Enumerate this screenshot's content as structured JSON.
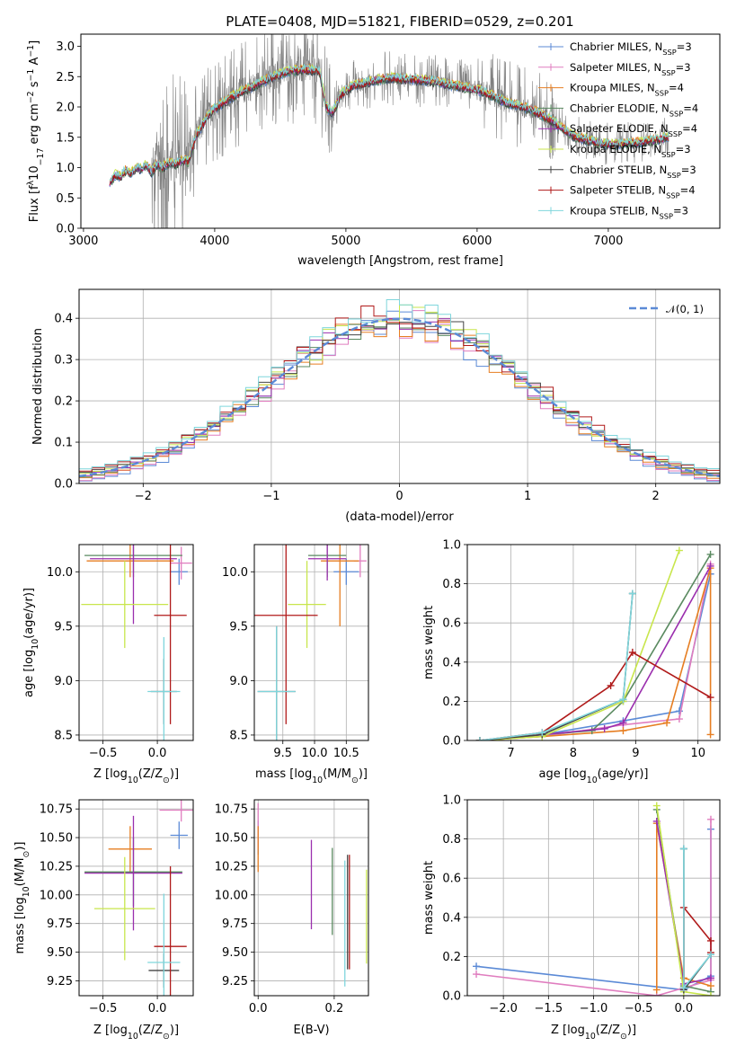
{
  "figure": {
    "title": "PLATE=0408, MJD=51821, FIBERID=0529, z=0.201"
  },
  "colors": {
    "Chabrier MILES": "#5b8ad6",
    "Salpeter MILES": "#e07dbf",
    "Kroupa MILES": "#e67e22",
    "Chabrier ELODIE": "#5a8a60",
    "Salpeter ELODIE": "#9b2fae",
    "Kroupa ELODIE": "#c8e64c",
    "Chabrier STELIB": "#444444",
    "Salpeter STELIB": "#b01a1a",
    "Kroupa STELIB": "#7fd6dc",
    "data": "#808080",
    "gaussian": "#5b8ad6"
  },
  "chart_data": [
    {
      "id": "spectrum",
      "type": "line",
      "title": "PLATE=0408, MJD=51821, FIBERID=0529, z=0.201",
      "xlabel": "wavelength [Angstrom, rest frame]",
      "ylabel_parts": [
        "Flux [",
        "f",
        "λ",
        "10",
        "−17",
        " erg cm",
        "−2",
        " s",
        "−1",
        " A",
        "−1",
        "]"
      ],
      "xlim": [
        2980,
        7850
      ],
      "ylim": [
        0,
        3.2
      ],
      "xticks": [
        3000,
        4000,
        5000,
        6000,
        7000
      ],
      "yticks": [
        0.0,
        0.5,
        1.0,
        1.5,
        2.0,
        2.5,
        3.0
      ],
      "ytick_labels": [
        "0.0",
        "0.5",
        "1.0",
        "1.5",
        "2.0",
        "2.5",
        "3.0"
      ],
      "grid": false,
      "legend_position": "top-right",
      "legend": [
        {
          "name": "Chabrier MILES",
          "nssp": "3"
        },
        {
          "name": "Salpeter MILES",
          "nssp": "3"
        },
        {
          "name": "Kroupa MILES",
          "nssp": "4"
        },
        {
          "name": "Chabrier ELODIE",
          "nssp": "4"
        },
        {
          "name": "Salpeter ELODIE",
          "nssp": "4"
        },
        {
          "name": "Kroupa ELODIE",
          "nssp": "3"
        },
        {
          "name": "Chabrier STELIB",
          "nssp": "3"
        },
        {
          "name": "Salpeter STELIB",
          "nssp": "4"
        },
        {
          "name": "Kroupa STELIB",
          "nssp": "3"
        }
      ],
      "legend_suffix": ", N",
      "legend_sub": "SSP",
      "model_continuum": {
        "x": [
          3200,
          3240,
          3280,
          3320,
          3360,
          3400,
          3440,
          3480,
          3520,
          3560,
          3600,
          3650,
          3700,
          3750,
          3800,
          3860,
          3920,
          3980,
          4050,
          4120,
          4200,
          4300,
          4400,
          4500,
          4600,
          4700,
          4800,
          4850,
          4900,
          4960,
          5050,
          5150,
          5250,
          5350,
          5450,
          5550,
          5650,
          5750,
          5850,
          5950,
          6050,
          6150,
          6250,
          6350,
          6450,
          6550,
          6650,
          6750,
          6850,
          6950,
          7050,
          7150,
          7250,
          7350,
          7450
        ],
        "y": [
          0.75,
          0.88,
          0.85,
          0.95,
          0.9,
          1.0,
          0.98,
          1.05,
          0.92,
          1.05,
          1.0,
          1.08,
          1.05,
          1.12,
          1.1,
          1.55,
          1.75,
          1.95,
          2.05,
          2.15,
          2.25,
          2.35,
          2.45,
          2.55,
          2.6,
          2.62,
          2.58,
          2.0,
          1.9,
          2.2,
          2.35,
          2.4,
          2.45,
          2.48,
          2.46,
          2.45,
          2.43,
          2.38,
          2.35,
          2.3,
          2.25,
          2.15,
          2.05,
          2.0,
          1.92,
          1.8,
          1.65,
          1.5,
          1.45,
          1.4,
          1.38,
          1.4,
          1.42,
          1.45,
          1.5
        ]
      }
    },
    {
      "id": "residuals",
      "type": "histogram",
      "xlabel": "(data-model)/error",
      "ylabel": "Normed distribution",
      "xlim": [
        -2.5,
        2.5
      ],
      "ylim": [
        0,
        0.47
      ],
      "xticks": [
        -2,
        -1,
        0,
        1,
        2
      ],
      "xtick_labels": [
        "−2",
        "−1",
        "0",
        "1",
        "2"
      ],
      "yticks": [
        0.0,
        0.1,
        0.2,
        0.3,
        0.4
      ],
      "ytick_labels": [
        "0.0",
        "0.1",
        "0.2",
        "0.3",
        "0.4"
      ],
      "grid": true,
      "legend_position": "top-right",
      "gaussian_label": "𝒩(0, 1)",
      "bin_width": 0.1
    },
    {
      "id": "age_vs_Z",
      "type": "scatter",
      "xlabel_parts": [
        "Z [log",
        "10",
        "(Z/Z",
        "⊙",
        ")]"
      ],
      "ylabel_parts": [
        "age  [log",
        "10",
        "(age/yr)]"
      ],
      "xlim": [
        -0.72,
        0.33
      ],
      "ylim": [
        8.45,
        10.25
      ],
      "xticks": [
        -0.5,
        0.0
      ],
      "xtick_labels": [
        "−0.5",
        "0.0"
      ],
      "yticks": [
        8.5,
        9.0,
        9.5,
        10.0
      ],
      "ytick_labels": [
        "8.5",
        "9.0",
        "9.5",
        "10.0"
      ],
      "grid": true,
      "points": [
        {
          "series": "Chabrier MILES",
          "x": 0.2,
          "y": 10.0,
          "xerr": 0.08,
          "yerr": 0.12
        },
        {
          "series": "Salpeter MILES",
          "x": 0.22,
          "y": 10.08,
          "xerr": 0.1,
          "yerr": 0.15
        },
        {
          "series": "Kroupa MILES",
          "x": -0.25,
          "y": 10.1,
          "xerr": 0.4,
          "yerr": 0.15
        },
        {
          "series": "Chabrier ELODIE",
          "x": -0.22,
          "y": 10.15,
          "xerr": 0.45,
          "yerr": 0.2
        },
        {
          "series": "Salpeter ELODIE",
          "x": -0.22,
          "y": 10.12,
          "xerr": 0.4,
          "yerr": 0.6
        },
        {
          "series": "Kroupa ELODIE",
          "x": -0.3,
          "y": 9.7,
          "xerr": 0.4,
          "yerr": 0.4
        },
        {
          "series": "Chabrier STELIB",
          "x": 0.06,
          "y": 8.9,
          "xerr": 0.12,
          "yerr": 0.3
        },
        {
          "series": "Salpeter STELIB",
          "x": 0.12,
          "y": 9.6,
          "xerr": 0.15,
          "yerr": 1.0
        },
        {
          "series": "Kroupa STELIB",
          "x": 0.06,
          "y": 8.9,
          "xerr": 0.15,
          "yerr": 0.5
        }
      ]
    },
    {
      "id": "age_vs_mass",
      "type": "scatter",
      "xlabel_parts": [
        "mass [log",
        "10",
        "(M/M",
        "⊙",
        ")]"
      ],
      "ylabel": "",
      "xlim": [
        9.05,
        10.85
      ],
      "ylim": [
        8.45,
        10.25
      ],
      "xticks": [
        9.5,
        10.0,
        10.5
      ],
      "xtick_labels": [
        "9.5",
        "10.0",
        "10.5"
      ],
      "yticks": [
        8.5,
        9.0,
        9.5,
        10.0
      ],
      "ytick_labels": [
        "8.5",
        "9.0",
        "9.5",
        "10.0"
      ],
      "grid": true,
      "points": [
        {
          "series": "Chabrier MILES",
          "x": 10.5,
          "y": 10.0,
          "xerr": 0.2,
          "yerr": 0.12
        },
        {
          "series": "Salpeter MILES",
          "x": 10.72,
          "y": 10.1,
          "xerr": 0.1,
          "yerr": 0.15
        },
        {
          "series": "Kroupa MILES",
          "x": 10.4,
          "y": 10.1,
          "xerr": 0.3,
          "yerr": 0.6
        },
        {
          "series": "Chabrier ELODIE",
          "x": 10.2,
          "y": 10.15,
          "xerr": 0.3,
          "yerr": 0.2
        },
        {
          "series": "Salpeter ELODIE",
          "x": 10.2,
          "y": 10.12,
          "xerr": 0.3,
          "yerr": 0.2
        },
        {
          "series": "Kroupa ELODIE",
          "x": 9.88,
          "y": 9.7,
          "xerr": 0.3,
          "yerr": 0.4
        },
        {
          "series": "Chabrier STELIB",
          "x": 9.4,
          "y": 8.9,
          "xerr": 0.3,
          "yerr": 0.6
        },
        {
          "series": "Salpeter STELIB",
          "x": 9.55,
          "y": 9.6,
          "xerr": 0.5,
          "yerr": 1.0
        },
        {
          "series": "Kroupa STELIB",
          "x": 9.4,
          "y": 8.9,
          "xerr": 0.3,
          "yerr": 0.6
        }
      ]
    },
    {
      "id": "cum_weight_vs_age",
      "type": "line",
      "xlabel_parts": [
        "age  [log",
        "10",
        "(age/yr)]"
      ],
      "ylabel": "mass weight",
      "xlim": [
        6.3,
        10.35
      ],
      "ylim": [
        0,
        1.0
      ],
      "xticks": [
        7,
        8,
        9,
        10
      ],
      "xtick_labels": [
        "7",
        "8",
        "9",
        "10"
      ],
      "yticks": [
        0.0,
        0.2,
        0.4,
        0.6,
        0.8,
        1.0
      ],
      "ytick_labels": [
        "0.0",
        "0.2",
        "0.4",
        "0.6",
        "0.8",
        "1.0"
      ],
      "grid": true,
      "series": [
        {
          "name": "Chabrier MILES",
          "x": [
            6.5,
            7.5,
            8.8,
            9.7,
            10.2,
            10.2
          ],
          "y": [
            0.0,
            0.03,
            0.1,
            0.15,
            0.85,
            0.85
          ]
        },
        {
          "name": "Salpeter MILES",
          "x": [
            6.5,
            7.5,
            8.8,
            9.7,
            10.2
          ],
          "y": [
            0.0,
            0.02,
            0.08,
            0.11,
            0.9
          ]
        },
        {
          "name": "Kroupa MILES",
          "x": [
            6.5,
            7.5,
            8.8,
            9.5,
            10.2,
            10.2
          ],
          "y": [
            0.0,
            0.02,
            0.05,
            0.09,
            0.88,
            0.03
          ]
        },
        {
          "name": "Chabrier ELODIE",
          "x": [
            6.5,
            7.5,
            8.3,
            8.8,
            10.2
          ],
          "y": [
            0.0,
            0.03,
            0.05,
            0.2,
            0.95
          ]
        },
        {
          "name": "Salpeter ELODIE",
          "x": [
            6.5,
            7.5,
            8.5,
            8.8,
            10.2
          ],
          "y": [
            0.0,
            0.03,
            0.06,
            0.09,
            0.89
          ]
        },
        {
          "name": "Kroupa ELODIE",
          "x": [
            6.5,
            7.5,
            8.8,
            9.7
          ],
          "y": [
            0.0,
            0.02,
            0.2,
            0.97
          ]
        },
        {
          "name": "Chabrier STELIB",
          "x": [
            6.5,
            7.5,
            8.8,
            8.95
          ],
          "y": [
            0.0,
            0.03,
            0.21,
            0.75
          ]
        },
        {
          "name": "Salpeter STELIB",
          "x": [
            6.5,
            7.5,
            8.6,
            8.95,
            10.2
          ],
          "y": [
            0.0,
            0.04,
            0.28,
            0.45,
            0.22
          ]
        },
        {
          "name": "Kroupa STELIB",
          "x": [
            6.5,
            7.5,
            8.8,
            8.95
          ],
          "y": [
            0.0,
            0.04,
            0.21,
            0.75
          ]
        }
      ]
    },
    {
      "id": "mass_vs_Z",
      "type": "scatter",
      "xlabel_parts": [
        "Z [log",
        "10",
        "(Z/Z",
        "⊙",
        ")]"
      ],
      "ylabel_parts": [
        "mass [log",
        "10",
        "(M/M",
        "⊙",
        ")]"
      ],
      "xlim": [
        -0.72,
        0.33
      ],
      "ylim": [
        9.12,
        10.83
      ],
      "xticks": [
        -0.5,
        0.0
      ],
      "xtick_labels": [
        "−0.5",
        "0.0"
      ],
      "yticks": [
        9.25,
        9.5,
        9.75,
        10.0,
        10.25,
        10.5,
        10.75
      ],
      "ytick_labels": [
        "9.25",
        "9.50",
        "9.75",
        "10.00",
        "10.25",
        "10.50",
        "10.75"
      ],
      "grid": true,
      "points": [
        {
          "series": "Chabrier MILES",
          "x": 0.2,
          "y": 10.52,
          "xerr": 0.08,
          "yerr": 0.12
        },
        {
          "series": "Salpeter MILES",
          "x": 0.22,
          "y": 10.74,
          "xerr": 0.2,
          "yerr": 0.1
        },
        {
          "series": "Kroupa MILES",
          "x": -0.25,
          "y": 10.4,
          "xerr": 0.2,
          "yerr": 0.2
        },
        {
          "series": "Chabrier ELODIE",
          "x": -0.22,
          "y": 10.2,
          "xerr": 0.45,
          "yerr": 0.3
        },
        {
          "series": "Salpeter ELODIE",
          "x": -0.22,
          "y": 10.19,
          "xerr": 0.45,
          "yerr": 0.5
        },
        {
          "series": "Kroupa ELODIE",
          "x": -0.3,
          "y": 9.88,
          "xerr": 0.28,
          "yerr": 0.45
        },
        {
          "series": "Chabrier STELIB",
          "x": 0.06,
          "y": 9.34,
          "xerr": 0.14,
          "yerr": 0.15
        },
        {
          "series": "Salpeter STELIB",
          "x": 0.12,
          "y": 9.55,
          "xerr": 0.15,
          "yerr": 0.7
        },
        {
          "series": "Kroupa STELIB",
          "x": 0.06,
          "y": 9.41,
          "xerr": 0.15,
          "yerr": 0.6
        }
      ]
    },
    {
      "id": "mass_vs_EBV",
      "type": "scatter",
      "xlabel": "E(B-V)",
      "ylabel": "",
      "xlim": [
        -0.01,
        0.29
      ],
      "ylim": [
        9.12,
        10.83
      ],
      "xticks": [
        0.0,
        0.2
      ],
      "xtick_labels": [
        "0.0",
        "0.2"
      ],
      "yticks": [
        9.25,
        9.5,
        9.75,
        10.0,
        10.25,
        10.5,
        10.75
      ],
      "ytick_labels": [
        "9.25",
        "9.50",
        "9.75",
        "10.00",
        "10.25",
        "10.50",
        "10.75"
      ],
      "grid": true,
      "points": [
        {
          "series": "Chabrier MILES",
          "x": 0.0,
          "y": 10.5,
          "yerr": 0.15
        },
        {
          "series": "Salpeter MILES",
          "x": 0.0,
          "y": 10.6,
          "yerr": 0.2
        },
        {
          "series": "Kroupa MILES",
          "x": 0.0,
          "y": 10.4,
          "yerr": 0.2
        },
        {
          "series": "Chabrier ELODIE",
          "x": 0.195,
          "y": 10.03,
          "yerr": 0.38
        },
        {
          "series": "Salpeter ELODIE",
          "x": 0.14,
          "y": 10.09,
          "yerr": 0.39
        },
        {
          "series": "Kroupa ELODIE",
          "x": 0.285,
          "y": 9.81,
          "yerr": 0.41
        },
        {
          "series": "Chabrier STELIB",
          "x": 0.235,
          "y": 9.85,
          "yerr": 0.5
        },
        {
          "series": "Salpeter STELIB",
          "x": 0.24,
          "y": 9.85,
          "yerr": 0.5
        },
        {
          "series": "Kroupa STELIB",
          "x": 0.228,
          "y": 9.75,
          "yerr": 0.55
        }
      ]
    },
    {
      "id": "cum_weight_vs_Z",
      "type": "line",
      "xlabel_parts": [
        "Z [log",
        "10",
        "(Z/Z",
        "⊙",
        ")]"
      ],
      "ylabel": "mass weight",
      "xlim": [
        -2.4,
        0.4
      ],
      "ylim": [
        0,
        1.0
      ],
      "xticks": [
        -2.0,
        -1.5,
        -1.0,
        -0.5,
        0.0
      ],
      "xtick_labels": [
        "−2.0",
        "−1.5",
        "−1.0",
        "−0.5",
        "0.0"
      ],
      "yticks": [
        0.0,
        0.2,
        0.4,
        0.6,
        0.8,
        1.0
      ],
      "ytick_labels": [
        "0.0",
        "0.2",
        "0.4",
        "0.6",
        "0.8",
        "1.0"
      ],
      "grid": true,
      "series": [
        {
          "name": "Chabrier MILES",
          "x": [
            -2.3,
            0.0,
            0.3,
            0.3
          ],
          "y": [
            0.15,
            0.03,
            0.1,
            0.85
          ]
        },
        {
          "name": "Salpeter MILES",
          "x": [
            -2.3,
            -0.3,
            0.3,
            0.3
          ],
          "y": [
            0.11,
            0.0,
            0.08,
            0.9
          ]
        },
        {
          "name": "Kroupa MILES",
          "x": [
            -0.3,
            -0.3,
            0.0,
            0.3
          ],
          "y": [
            0.03,
            0.88,
            0.09,
            0.05
          ]
        },
        {
          "name": "Chabrier ELODIE",
          "x": [
            -0.3,
            0.0,
            0.3
          ],
          "y": [
            0.95,
            0.05,
            0.02
          ]
        },
        {
          "name": "Salpeter ELODIE",
          "x": [
            -0.3,
            0.0,
            0.3
          ],
          "y": [
            0.89,
            0.06,
            0.09
          ]
        },
        {
          "name": "Kroupa ELODIE",
          "x": [
            -0.3,
            0.0,
            0.3
          ],
          "y": [
            0.97,
            0.02,
            0.0
          ]
        },
        {
          "name": "Chabrier STELIB",
          "x": [
            0.0,
            0.0,
            0.3
          ],
          "y": [
            0.75,
            0.03,
            0.21
          ]
        },
        {
          "name": "Salpeter STELIB",
          "x": [
            0.0,
            0.0,
            0.3,
            0.3
          ],
          "y": [
            0.04,
            0.45,
            0.28,
            0.22
          ]
        },
        {
          "name": "Kroupa STELIB",
          "x": [
            0.0,
            0.0,
            0.3
          ],
          "y": [
            0.75,
            0.04,
            0.21
          ]
        }
      ]
    }
  ]
}
